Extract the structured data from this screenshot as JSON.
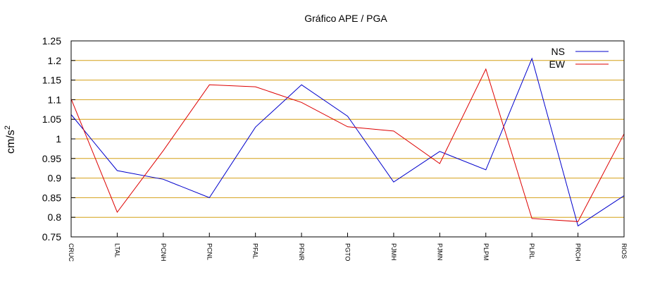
{
  "chart_data": {
    "type": "line",
    "title": "Gráfico  APE / PGA",
    "xlabel": "",
    "ylabel": "cm/s",
    "ylabel_superscript": "2",
    "ylim": [
      0.75,
      1.25
    ],
    "yticks": [
      "0.75",
      "0.8",
      "0.85",
      "0.9",
      "0.95",
      "1",
      "1.05",
      "1.1",
      "1.15",
      "1.2",
      "1.25"
    ],
    "grid": true,
    "grid_color": "#d4a017",
    "legend_position": "top-right",
    "categories": [
      "CRUC",
      "LTAL",
      "PCNH",
      "PCNL",
      "PFAL",
      "PFNR",
      "PGTO",
      "PJMH",
      "PJMN",
      "PLPM",
      "PLRL",
      "PRCH",
      "RIOS"
    ],
    "series": [
      {
        "name": "NS",
        "color": "#0000cc",
        "values": [
          1.062,
          0.919,
          0.897,
          0.85,
          1.03,
          1.138,
          1.058,
          0.89,
          0.968,
          0.921,
          1.205,
          0.778,
          0.855
        ]
      },
      {
        "name": "EW",
        "color": "#dd0000",
        "values": [
          1.102,
          0.813,
          0.97,
          1.138,
          1.133,
          1.093,
          1.031,
          1.02,
          0.937,
          1.178,
          0.797,
          0.789,
          1.013
        ]
      }
    ]
  }
}
